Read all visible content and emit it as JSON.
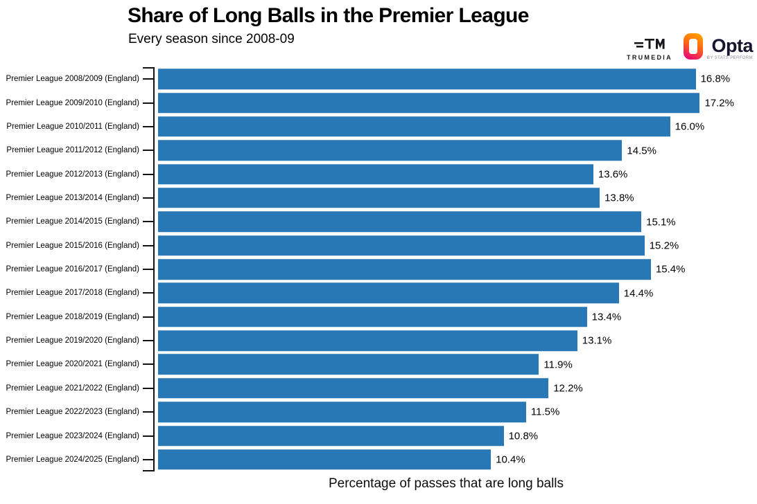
{
  "header": {
    "title": "Share of Long Balls in the Premier League",
    "subtitle": "Every season since 2008-09"
  },
  "branding": {
    "trumedia": {
      "name": "TRUMEDIA",
      "monogram": "TM"
    },
    "opta": {
      "name": "Opta",
      "tagline": "BY STATS PERFORM"
    }
  },
  "chart_data": {
    "type": "bar",
    "orientation": "horizontal",
    "title": "Share of Long Balls in the Premier League",
    "subtitle": "Every season since 2008-09",
    "xlabel": "Percentage of passes that are long balls",
    "ylabel": "",
    "xlim": [
      0,
      18
    ],
    "grid": false,
    "legend": false,
    "bar_color": "#2878b5",
    "axis_color": "#111111",
    "categories": [
      "Premier League 2008/2009 (England)",
      "Premier League 2009/2010 (England)",
      "Premier League 2010/2011 (England)",
      "Premier League 2011/2012 (England)",
      "Premier League 2012/2013 (England)",
      "Premier League 2013/2014 (England)",
      "Premier League 2014/2015 (England)",
      "Premier League 2015/2016 (England)",
      "Premier League 2016/2017 (England)",
      "Premier League 2017/2018 (England)",
      "Premier League 2018/2019 (England)",
      "Premier League 2019/2020 (England)",
      "Premier League 2020/2021 (England)",
      "Premier League 2021/2022 (England)",
      "Premier League 2022/2023 (England)",
      "Premier League 2023/2024 (England)",
      "Premier League 2024/2025 (England)"
    ],
    "values": [
      16.8,
      17.2,
      16.0,
      14.5,
      13.6,
      13.8,
      15.1,
      15.2,
      15.4,
      14.4,
      13.4,
      13.1,
      11.9,
      12.2,
      11.5,
      10.8,
      10.4
    ],
    "value_labels": [
      "16.8%",
      "17.2%",
      "16.0%",
      "14.5%",
      "13.6%",
      "13.8%",
      "15.1%",
      "15.2%",
      "15.4%",
      "14.4%",
      "13.4%",
      "13.1%",
      "11.9%",
      "12.2%",
      "11.5%",
      "10.8%",
      "10.4%"
    ]
  }
}
